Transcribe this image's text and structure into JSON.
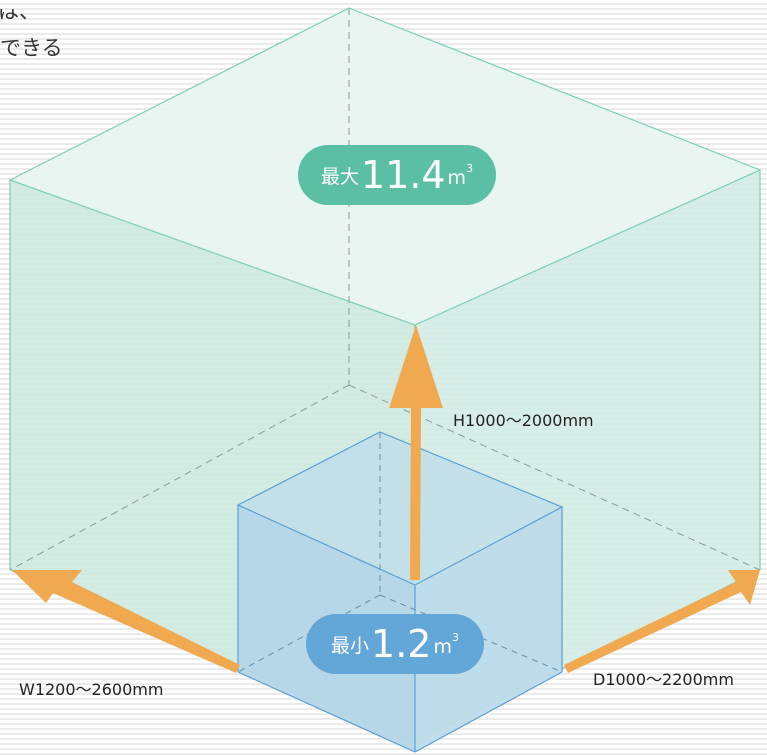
{
  "intro": {
    "line1": "は、",
    "line2": "できる"
  },
  "badges": {
    "max": {
      "prefix": "最大",
      "value": "11.4",
      "unit": "m",
      "exponent": "3"
    },
    "min": {
      "prefix": "最小",
      "value": "1.2",
      "unit": "m",
      "exponent": "3"
    }
  },
  "dimensions": {
    "height": "H1000～2000mm",
    "width": "W1200～2600mm",
    "depth": "D1000～2200mm"
  },
  "colors": {
    "large_box_top": "#e6f4ef",
    "large_box_side": "#cdeae1",
    "large_box_edge": "#7fcdb8",
    "small_box_face": "#b6d8e8",
    "small_box_edge": "#5b9fd3",
    "arrow": "#f0a94e",
    "badge_max": "#5bbfa3",
    "badge_min": "#63a6d8"
  }
}
